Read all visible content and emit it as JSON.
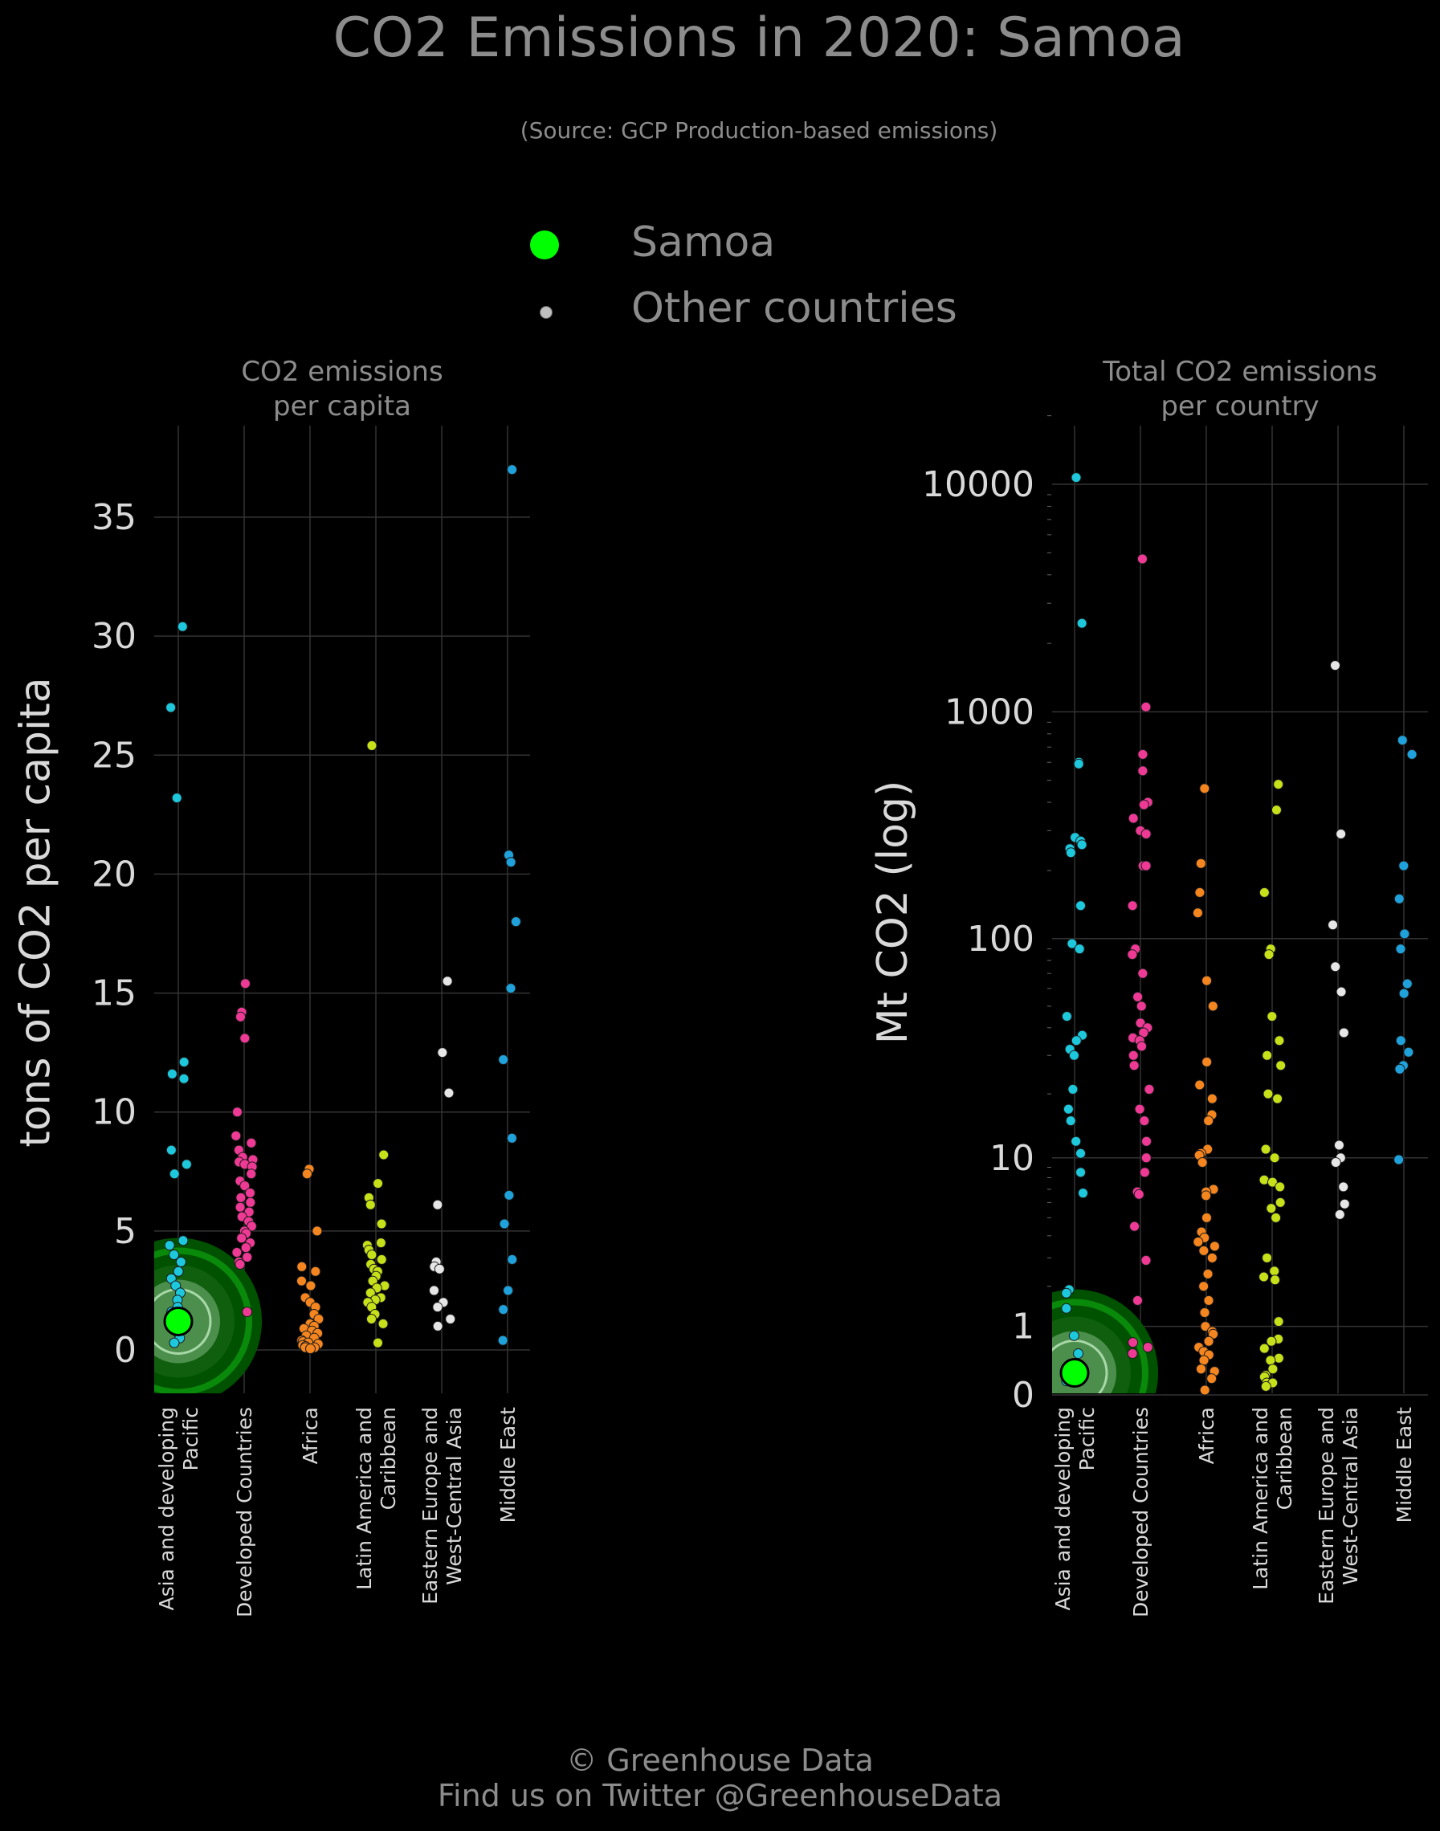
{
  "title": "CO2 Emissions in 2020: Samoa",
  "subtitle": "(Source: GCP Production-based emissions)",
  "legend": [
    {
      "label": "Samoa",
      "color": "#00ff00"
    },
    {
      "label": "Other countries",
      "color": "#bfbfbf"
    }
  ],
  "footer": {
    "line1": "© Greenhouse Data",
    "line2": "Find us on Twitter @GreenhouseData"
  },
  "colors": {
    "Asia and developing Pacific": "#1ec8dc",
    "Developed Countries": "#ef3a95",
    "Africa": "#f5861f",
    "Latin America and Caribbean": "#c6e019",
    "Eastern Europe and West-Central Asia": "#e6e6e6",
    "Middle East": "#1fa2dc",
    "highlight": "#00ff00",
    "highlight_ring": "#0b6b0b",
    "grid": "#333333",
    "axis_text": "#d9d9d9"
  },
  "chart_data": [
    {
      "type": "scatter",
      "title_lines": [
        "CO2 emissions",
        "per capita"
      ],
      "ylabel": "tons of CO2 per capita",
      "ylim": [
        -1.8,
        38.8
      ],
      "yticks": [
        0,
        5,
        10,
        15,
        20,
        25,
        30,
        35
      ],
      "grid": true,
      "categories": [
        "Asia and developing Pacific",
        "Developed Countries",
        "Africa",
        "Latin America and Caribbean",
        "Eastern Europe and West-Central Asia",
        "Middle East"
      ],
      "category_labels": [
        [
          "Asia and developing",
          "Pacific"
        ],
        [
          "Developed Countries"
        ],
        [
          "Africa"
        ],
        [
          "Latin America and",
          "Caribbean"
        ],
        [
          "Eastern Europe and",
          "West-Central Asia"
        ],
        [
          "Middle East"
        ]
      ],
      "highlight": {
        "name": "Samoa",
        "category": "Asia and developing Pacific",
        "value": 1.2
      },
      "series": [
        {
          "category": "Asia and developing Pacific",
          "values": [
            30.4,
            27.0,
            23.2,
            12.1,
            11.6,
            11.4,
            8.4,
            7.8,
            7.4,
            4.6,
            4.4,
            4.0,
            3.7,
            3.3,
            3.0,
            2.7,
            2.4,
            2.1,
            1.8,
            1.6,
            1.3,
            1.1,
            0.9,
            0.7,
            0.5,
            0.3
          ]
        },
        {
          "category": "Developed Countries",
          "values": [
            15.4,
            14.2,
            14.0,
            13.1,
            10.0,
            9.0,
            8.7,
            8.4,
            8.1,
            8.0,
            7.9,
            7.8,
            7.7,
            7.4,
            7.1,
            6.9,
            6.6,
            6.4,
            6.2,
            6.0,
            5.8,
            5.6,
            5.4,
            5.2,
            5.0,
            4.9,
            4.7,
            4.5,
            4.3,
            4.1,
            3.9,
            3.7,
            3.6,
            1.6
          ]
        },
        {
          "category": "Africa",
          "values": [
            7.6,
            7.4,
            5.0,
            3.5,
            3.3,
            2.9,
            2.7,
            2.2,
            2.0,
            1.8,
            1.5,
            1.3,
            1.1,
            1.0,
            0.9,
            0.8,
            0.7,
            0.6,
            0.5,
            0.4,
            0.35,
            0.3,
            0.25,
            0.2,
            0.15,
            0.1,
            0.1,
            0.05
          ]
        },
        {
          "category": "Latin America and Caribbean",
          "values": [
            25.4,
            8.2,
            7.0,
            6.4,
            6.1,
            5.3,
            4.5,
            4.4,
            4.2,
            4.0,
            3.8,
            3.6,
            3.4,
            3.3,
            3.1,
            2.9,
            2.7,
            2.6,
            2.4,
            2.2,
            2.1,
            2.0,
            1.8,
            1.5,
            1.3,
            1.1,
            0.3
          ]
        },
        {
          "category": "Eastern Europe and West-Central Asia",
          "values": [
            15.5,
            12.5,
            10.8,
            6.1,
            3.7,
            3.5,
            3.4,
            2.5,
            2.0,
            1.8,
            1.3,
            1.0
          ]
        },
        {
          "category": "Middle East",
          "values": [
            37.0,
            20.8,
            20.5,
            18.0,
            15.2,
            12.2,
            8.9,
            6.5,
            5.3,
            3.8,
            2.5,
            1.7,
            0.4
          ]
        }
      ]
    },
    {
      "type": "scatter",
      "title_lines": [
        "Total CO2 emissions",
        "per country"
      ],
      "ylabel": "Mt CO2 (log)",
      "log_scale": true,
      "ylim": [
        0,
        20000
      ],
      "yticks": [
        0,
        1,
        10,
        100,
        1000,
        10000
      ],
      "grid": true,
      "categories": [
        "Asia and developing Pacific",
        "Developed Countries",
        "Africa",
        "Latin America and Caribbean",
        "Eastern Europe and West-Central Asia",
        "Middle East"
      ],
      "category_labels": [
        [
          "Asia and developing",
          "Pacific"
        ],
        [
          "Developed Countries"
        ],
        [
          "Africa"
        ],
        [
          "Latin America and",
          "Caribbean"
        ],
        [
          "Eastern Europe and",
          "West-Central Asia"
        ],
        [
          "Middle East"
        ]
      ],
      "highlight": {
        "name": "Samoa",
        "category": "Asia and developing Pacific",
        "value": 0.25
      },
      "series": [
        {
          "category": "Asia and developing Pacific",
          "values": [
            10700,
            2450,
            600,
            590,
            280,
            270,
            260,
            250,
            240,
            140,
            95,
            90,
            45,
            37,
            35,
            32,
            30,
            21,
            17,
            15,
            12,
            10.5,
            8.5,
            6.7,
            1.9,
            1.8,
            1.4,
            0.82,
            0.52,
            0.3,
            0.25,
            0.15
          ]
        },
        {
          "category": "Developed Countries",
          "values": [
            4700,
            1050,
            650,
            550,
            400,
            390,
            340,
            300,
            290,
            210,
            210,
            140,
            90,
            85,
            70,
            55,
            50,
            42,
            40,
            38,
            36,
            35,
            33,
            30,
            27,
            21,
            17,
            15,
            12,
            10,
            8.5,
            6.8,
            6.6,
            4.5,
            2.9,
            1.6,
            0.7,
            0.62,
            0.52
          ]
        },
        {
          "category": "Africa",
          "values": [
            460,
            215,
            160,
            130,
            65,
            50,
            28,
            22,
            19,
            16,
            15,
            11,
            10.5,
            10.3,
            9.5,
            7.0,
            6.8,
            6.5,
            5.0,
            4.2,
            3.9,
            3.7,
            3.5,
            3.3,
            3.0,
            2.4,
            2.0,
            1.6,
            1.3,
            1.0,
            0.9,
            0.85,
            0.72,
            0.62,
            0.55,
            0.5,
            0.42,
            0.3,
            0.27,
            0.18,
            0.05
          ]
        },
        {
          "category": "Latin America and Caribbean",
          "values": [
            480,
            370,
            160,
            90,
            85,
            45,
            35,
            30,
            27,
            20,
            19,
            11,
            10,
            7.8,
            7.6,
            7.2,
            6.0,
            5.6,
            5.0,
            3.0,
            2.5,
            2.3,
            2.2,
            1.1,
            0.76,
            0.72,
            0.6,
            0.45,
            0.42,
            0.3,
            0.22,
            0.2,
            0.13,
            0.13,
            0.09
          ]
        },
        {
          "category": "Eastern Europe and West-Central Asia",
          "values": [
            1600,
            290,
            115,
            75,
            58,
            38,
            11.5,
            10,
            9.5,
            7.2,
            5.9,
            5.2
          ]
        },
        {
          "category": "Middle East",
          "values": [
            750,
            650,
            210,
            150,
            105,
            90,
            63,
            57,
            35,
            31,
            27,
            26,
            9.8
          ]
        }
      ]
    }
  ]
}
